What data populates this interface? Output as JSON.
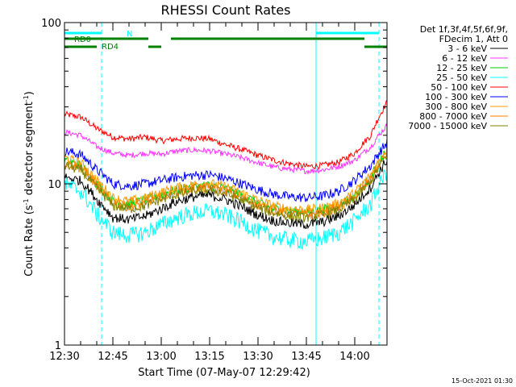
{
  "chart_data": {
    "type": "line",
    "title": "RHESSI Count Rates",
    "xlabel": "Start Time (07-May-07 12:29:42)",
    "ylabel": "Count Rate (s",
    "ylabel_sup": "-1",
    "ylabel_tail": " detector segment",
    "ylabel_sup2": "-1",
    "ylabel_end": ")",
    "y_scale": "log",
    "ylim": [
      1,
      100
    ],
    "y_ticks": [
      "1",
      "10",
      "100"
    ],
    "xlim": [
      "12:30",
      "14:10"
    ],
    "x_ticks": [
      "12:30",
      "12:45",
      "13:00",
      "13:15",
      "13:30",
      "13:45",
      "14:00"
    ],
    "x_tick_minutes": [
      0,
      15,
      30,
      45,
      60,
      75,
      90
    ],
    "x_range_minutes": [
      0,
      100
    ],
    "legend_header": [
      "Det 1f,3f,4f,5f,6f,9f,",
      "FDecim 1, Att 0"
    ],
    "legend_position": "right",
    "series": [
      {
        "name": "3 - 6 keV",
        "color": "#000000",
        "x": [
          0,
          5,
          10,
          15,
          20,
          25,
          30,
          35,
          40,
          45,
          50,
          55,
          60,
          65,
          70,
          75,
          80,
          85,
          90,
          95,
          100
        ],
        "y": [
          11,
          10.5,
          8,
          6.2,
          6,
          6.3,
          7,
          7.8,
          8.3,
          8.5,
          8,
          7.2,
          6.4,
          5.9,
          5.7,
          5.6,
          5.8,
          6.3,
          7.4,
          9.5,
          14
        ]
      },
      {
        "name": "6 - 12 keV",
        "color": "#ff33ff",
        "x": [
          0,
          5,
          10,
          15,
          20,
          25,
          30,
          35,
          40,
          45,
          50,
          55,
          60,
          65,
          70,
          75,
          80,
          85,
          90,
          95,
          100
        ],
        "y": [
          21,
          20,
          17,
          15.5,
          15,
          15.5,
          15.3,
          16,
          16.2,
          16,
          15.3,
          14.5,
          13.5,
          12.7,
          12.3,
          12,
          12.2,
          12.8,
          14,
          17,
          23
        ]
      },
      {
        "name": "12 - 25 keV",
        "color": "#00cc00",
        "x": [
          0,
          5,
          10,
          15,
          20,
          25,
          30,
          35,
          40,
          45,
          50,
          55,
          60,
          65,
          70,
          75,
          80,
          85,
          90,
          95,
          100
        ],
        "y": [
          14,
          13,
          10,
          7.8,
          7.5,
          7.9,
          8.6,
          9.2,
          9.6,
          9.8,
          9.3,
          8.5,
          7.6,
          7,
          6.8,
          6.7,
          6.9,
          7.4,
          8.5,
          11,
          16
        ]
      },
      {
        "name": "25 - 50 keV",
        "color": "#00ffff",
        "x": [
          0,
          5,
          10,
          15,
          20,
          25,
          30,
          35,
          40,
          45,
          50,
          55,
          60,
          65,
          70,
          75,
          80,
          85,
          90,
          95,
          100
        ],
        "y": [
          10,
          9,
          6.5,
          5,
          4.8,
          5,
          5.6,
          6.2,
          6.6,
          6.8,
          6.4,
          5.8,
          5.1,
          4.7,
          4.5,
          4.4,
          4.6,
          5,
          5.9,
          7.5,
          12
        ]
      },
      {
        "name": "50 - 100 keV",
        "color": "#ff0000",
        "x": [
          0,
          5,
          10,
          15,
          20,
          25,
          30,
          35,
          40,
          45,
          50,
          55,
          60,
          65,
          70,
          75,
          80,
          85,
          90,
          95,
          100
        ],
        "y": [
          27,
          26,
          22,
          19.5,
          19,
          19.5,
          18.5,
          19,
          19.3,
          19,
          17.5,
          16.3,
          15,
          14,
          13.3,
          12.8,
          13,
          13.6,
          15.5,
          20,
          32
        ]
      },
      {
        "name": "100 - 300 keV",
        "color": "#0000ff",
        "x": [
          0,
          5,
          10,
          15,
          20,
          25,
          30,
          35,
          40,
          45,
          50,
          55,
          60,
          65,
          70,
          75,
          80,
          85,
          90,
          95,
          100
        ],
        "y": [
          16,
          15.2,
          12.2,
          10,
          9.7,
          10,
          10.5,
          11,
          11.3,
          11.4,
          10.8,
          10,
          9.2,
          8.6,
          8.3,
          8.2,
          8.4,
          9,
          10.5,
          13,
          18
        ]
      },
      {
        "name": "300 - 800 keV",
        "color": "#ff9900",
        "x": [
          0,
          5,
          10,
          15,
          20,
          25,
          30,
          35,
          40,
          45,
          50,
          55,
          60,
          65,
          70,
          75,
          80,
          85,
          90,
          95,
          100
        ],
        "y": [
          14.5,
          13.5,
          10.5,
          8.2,
          7.8,
          8.2,
          8.9,
          9.5,
          9.9,
          10.1,
          9.6,
          8.8,
          7.9,
          7.3,
          7,
          6.9,
          7.1,
          7.6,
          8.8,
          11.3,
          16.5
        ]
      },
      {
        "name": "800 - 7000 keV",
        "color": "#ff7f00",
        "x": [
          0,
          5,
          10,
          15,
          20,
          25,
          30,
          35,
          40,
          45,
          50,
          55,
          60,
          65,
          70,
          75,
          80,
          85,
          90,
          95,
          100
        ],
        "y": [
          13.5,
          12.6,
          9.7,
          7.6,
          7.2,
          7.6,
          8.3,
          8.9,
          9.3,
          9.5,
          9,
          8.2,
          7.4,
          6.8,
          6.5,
          6.4,
          6.6,
          7.1,
          8.2,
          10.6,
          15.5
        ]
      },
      {
        "name": "7000 - 15000 keV",
        "color": "#808000",
        "x": [
          0,
          5,
          10,
          15,
          20,
          25,
          30,
          35,
          40,
          45,
          50,
          55,
          60,
          65,
          70,
          75,
          80,
          85,
          90,
          95,
          100
        ],
        "y": [
          13,
          12.2,
          9.4,
          7.3,
          7,
          7.3,
          8,
          8.6,
          9,
          9.2,
          8.7,
          7.9,
          7.1,
          6.6,
          6.3,
          6.2,
          6.4,
          6.9,
          8,
          10.3,
          15
        ]
      }
    ],
    "vertical_markers": [
      {
        "x": 11.5,
        "color": "#00ffff",
        "style": "dashed"
      },
      {
        "x": 78,
        "color": "#00ffff",
        "style": "solid"
      },
      {
        "x": 97.5,
        "color": "#00ffff",
        "style": "dashed"
      }
    ],
    "flags": [
      {
        "label": "N",
        "color": "#00ffff",
        "segments": [
          [
            0,
            11.5
          ],
          [
            78,
            97.5
          ]
        ]
      },
      {
        "label": "RD0",
        "color": "#008000",
        "segments": [
          [
            0,
            26
          ],
          [
            33,
            93
          ]
        ]
      },
      {
        "label": "RD4",
        "color": "#008000",
        "segments": [
          [
            0,
            10
          ],
          [
            26,
            30
          ],
          [
            93,
            100
          ]
        ]
      }
    ],
    "grid": false
  },
  "footer": {
    "timestamp": "15-Oct-2021 01:30"
  }
}
